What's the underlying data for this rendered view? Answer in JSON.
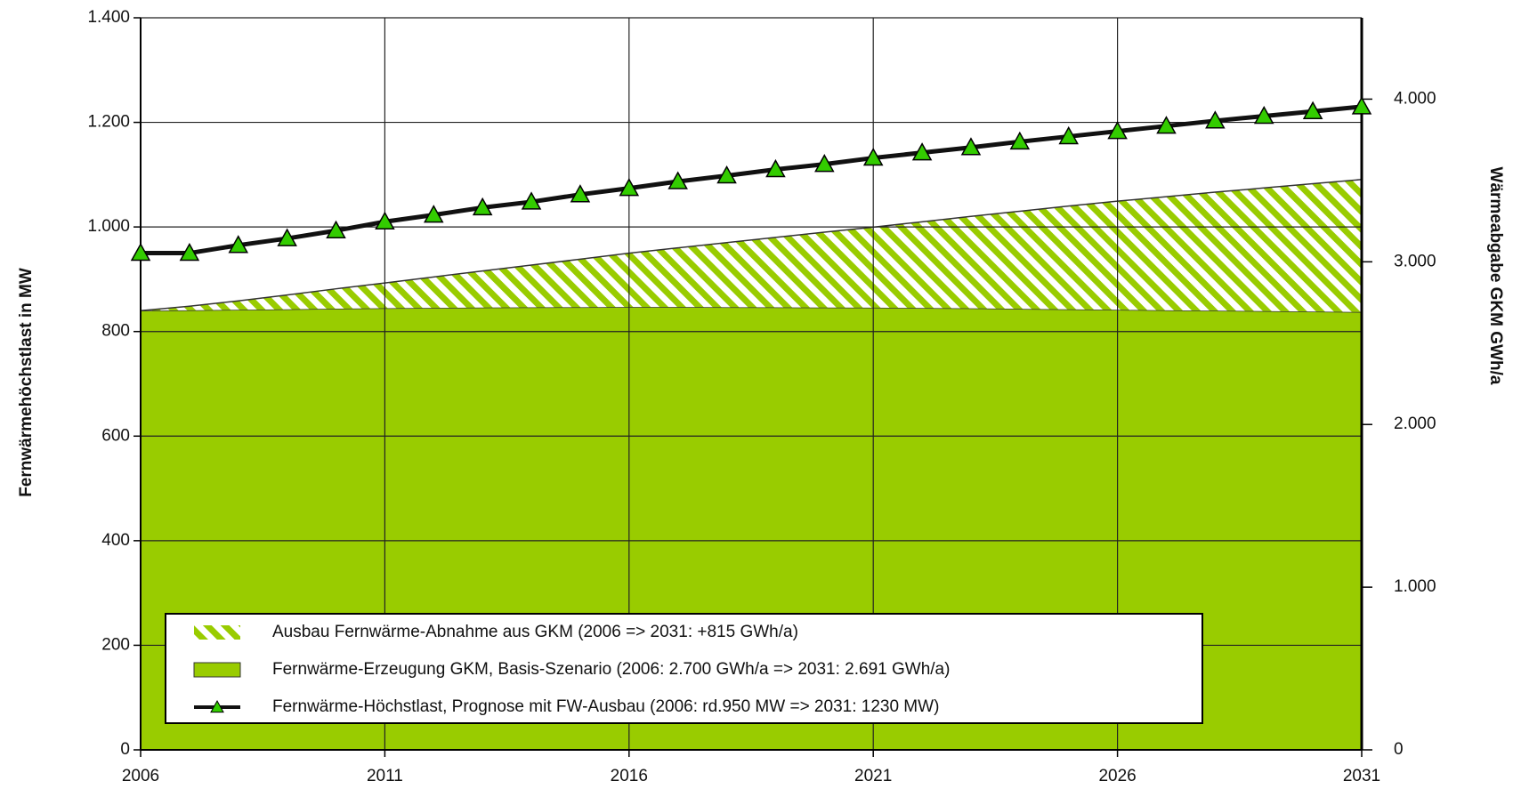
{
  "chart_data": {
    "type": "combo",
    "y_label": "Fernwärmehöchstlast  in MW",
    "y2_label": "Wärmeabgabe GKM  GWh/a",
    "x": [
      2006,
      2007,
      2008,
      2009,
      2010,
      2011,
      2012,
      2013,
      2014,
      2015,
      2016,
      2017,
      2018,
      2019,
      2020,
      2021,
      2022,
      2023,
      2024,
      2025,
      2026,
      2027,
      2028,
      2029,
      2030,
      2031
    ],
    "xlim": [
      2006,
      2031
    ],
    "xticks": [
      2006,
      2011,
      2016,
      2021,
      2026,
      2031
    ],
    "ylim": [
      0,
      1400
    ],
    "yticks": [
      0,
      200,
      400,
      600,
      800,
      {
        "value": 1000,
        "label": "1.000"
      },
      {
        "value": 1200,
        "label": "1.200"
      },
      {
        "value": 1400,
        "label": "1.400"
      }
    ],
    "y2lim": [
      0,
      4500
    ],
    "y2ticks": [
      0,
      {
        "value": 1000,
        "label": "1.000"
      },
      {
        "value": 2000,
        "label": "2.000"
      },
      {
        "value": 3000,
        "label": "3.000"
      },
      {
        "value": 4000,
        "label": "4.000"
      }
    ],
    "grid": true,
    "series": [
      {
        "name": "Ausbau Fernwärme-Abnahme aus GKM (2006 => 2031: +815 GWh/a)",
        "kind": "area",
        "stacked": true,
        "fill": "hatch",
        "axis": "y2",
        "color": "#99cc00",
        "values": [
          0,
          25,
          55,
          88,
          122,
          155,
          190,
          225,
          260,
          295,
          331,
          364,
          397,
          430,
          463,
          495,
          530,
          565,
          600,
          635,
          668,
          698,
          728,
          757,
          786,
          815
        ]
      },
      {
        "name": "Fernwärme-Erzeugung GKM, Basis-Szenario (2006: 2.700 GWh/a => 2031: 2.691 GWh/a)",
        "kind": "area",
        "axis": "y2",
        "color": "#99cc00",
        "values": [
          2700,
          2702,
          2705,
          2708,
          2712,
          2715,
          2717,
          2719,
          2720,
          2721,
          2722,
          2722,
          2721,
          2720,
          2719,
          2718,
          2716,
          2714,
          2711,
          2708,
          2705,
          2702,
          2700,
          2697,
          2694,
          2691
        ]
      },
      {
        "name": "Fernwärme-Höchstlast, Prognose mit FW-Ausbau (2006: rd.950 MW => 2031: 1230 MW)",
        "kind": "line",
        "marker": "triangle",
        "color": "#111111",
        "marker_color": "#33cc00",
        "values": [
          950,
          950,
          965,
          978,
          993,
          1010,
          1023,
          1037,
          1048,
          1062,
          1074,
          1087,
          1098,
          1110,
          1120,
          1132,
          1142,
          1152,
          1163,
          1173,
          1183,
          1193,
          1203,
          1212,
          1221,
          1230
        ]
      }
    ]
  }
}
